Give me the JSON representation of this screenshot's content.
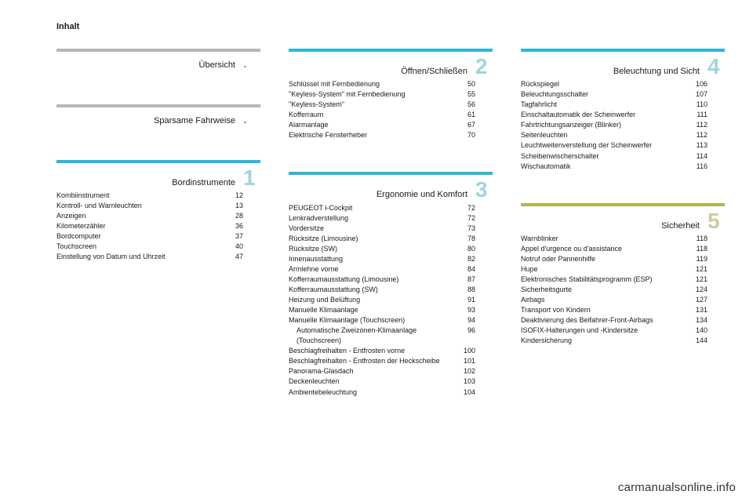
{
  "header": {
    "title": "Inhalt"
  },
  "watermark": "carmanualsonline.info",
  "colors": {
    "gray": "#b7b7b7",
    "blue": "#2fb6d6",
    "olive": "#b8b153",
    "num_blue": "#9dd6df",
    "num_olive": "#cfcba0",
    "dot_gray": "#666666"
  },
  "columns": [
    {
      "sections": [
        {
          "heading": "Übersicht",
          "rule_color_key": "gray",
          "marker": ".",
          "marker_color_key": "dot_gray",
          "items": []
        },
        {
          "heading": "Sparsame Fahrweise",
          "rule_color_key": "gray",
          "marker": ".",
          "marker_color_key": "dot_gray",
          "items": []
        },
        {
          "heading": "Bordinstrumente",
          "rule_color_key": "blue",
          "marker": "1",
          "marker_color_key": "num_blue",
          "items": [
            {
              "label": "Kombiinstrument",
              "page": "12"
            },
            {
              "label": "Kontroll- und Warnleuchten",
              "page": "13"
            },
            {
              "label": "Anzeigen",
              "page": "28"
            },
            {
              "label": "Kilometerzähler",
              "page": "36"
            },
            {
              "label": "Bordcomputer",
              "page": "37"
            },
            {
              "label": "Touchscreen",
              "page": "40"
            },
            {
              "label": "Einstellung von Datum und Uhrzeit",
              "page": "47"
            }
          ]
        }
      ]
    },
    {
      "sections": [
        {
          "heading": "Öffnen/Schließen",
          "rule_color_key": "blue",
          "marker": "2",
          "marker_color_key": "num_blue",
          "items": [
            {
              "label": "Schlüssel mit Fernbedienung",
              "page": "50"
            },
            {
              "label": "\"Keyless-System\" mit Fernbedienung",
              "page": "55"
            },
            {
              "label": "\"Keyless-System\"",
              "page": "56"
            },
            {
              "label": "Kofferraum",
              "page": "61"
            },
            {
              "label": "Alarmanlage",
              "page": "67"
            },
            {
              "label": "Elektrische Fensterheber",
              "page": "70"
            }
          ]
        },
        {
          "heading": "Ergonomie und Komfort",
          "rule_color_key": "blue",
          "marker": "3",
          "marker_color_key": "num_blue",
          "items": [
            {
              "label": "PEUGEOT i-Cockpit",
              "page": "72"
            },
            {
              "label": "Lenkradverstellung",
              "page": "72"
            },
            {
              "label": "Vordersitze",
              "page": "73"
            },
            {
              "label": "Rücksitze (Limousine)",
              "page": "78"
            },
            {
              "label": "Rücksitze (SW)",
              "page": "80"
            },
            {
              "label": "Innenausstattung",
              "page": "82"
            },
            {
              "label": "Armlehne vorne",
              "page": "84"
            },
            {
              "label": "Kofferraumausstattung (Limousine)",
              "page": "87"
            },
            {
              "label": "Kofferraumausstattung (SW)",
              "page": "88"
            },
            {
              "label": "Heizung und Belüftung",
              "page": "91"
            },
            {
              "label": "Manuelle Klimaanlage",
              "page": "93"
            },
            {
              "label": "Manuelle Klimaanlage (Touchscreen)",
              "page": "94"
            },
            {
              "label": "Automatische Zweizonen-Klimaanlage (Touchscreen)",
              "page": "96",
              "indent": true,
              "label_continuation": "(Touchscreen)"
            },
            {
              "label": "Beschlagfreihalten - Entfrosten vorne",
              "page": "100"
            },
            {
              "label": "Beschlagfreihalten - Entfrosten der Heckscheibe",
              "page": "101"
            },
            {
              "label": "Panorama-Glasdach",
              "page": "102"
            },
            {
              "label": "Deckenleuchten",
              "page": "103"
            },
            {
              "label": "Ambientebeleuchtung",
              "page": "104"
            }
          ]
        }
      ]
    },
    {
      "sections": [
        {
          "heading": "Beleuchtung und Sicht",
          "rule_color_key": "blue",
          "marker": "4",
          "marker_color_key": "num_blue",
          "items": [
            {
              "label": "Rückspiegel",
              "page": "106"
            },
            {
              "label": "Beleuchtungsschalter",
              "page": "107"
            },
            {
              "label": "Tagfahrlicht",
              "page": "110"
            },
            {
              "label": "Einschaltautomatik der Scheinwerfer",
              "page": "111"
            },
            {
              "label": "Fahrtrichtungsanzeiger (Blinker)",
              "page": "112"
            },
            {
              "label": "Seitenleuchten",
              "page": "112"
            },
            {
              "label": "Leuchtweitenverstellung der Scheinwerfer",
              "page": "113"
            },
            {
              "label": "Scheibenwischerschalter",
              "page": "114"
            },
            {
              "label": "Wischautomatik",
              "page": "116"
            }
          ]
        },
        {
          "heading": "Sicherheit",
          "rule_color_key": "olive",
          "marker": "5",
          "marker_color_key": "num_olive",
          "items": [
            {
              "label": "Warnblinker",
              "page": "118"
            },
            {
              "label": "Appel d'urgence ou d'assistance",
              "page": "118"
            },
            {
              "label": "Notruf oder Pannenhilfe",
              "page": "119"
            },
            {
              "label": "Hupe",
              "page": "121"
            },
            {
              "label": "Elektronisches Stabilitätsprogramm (ESP)",
              "page": "121"
            },
            {
              "label": "Sicherheitsgurte",
              "page": "124"
            },
            {
              "label": "Airbags",
              "page": "127"
            },
            {
              "label": "Transport von Kindern",
              "page": "131"
            },
            {
              "label": "Deaktivierung des Beifahrer-Front-Airbags",
              "page": "134"
            },
            {
              "label": "ISOFIX-Halterungen und -Kindersitze",
              "page": "140"
            },
            {
              "label": "Kindersicherung",
              "page": "144"
            }
          ]
        }
      ]
    }
  ]
}
